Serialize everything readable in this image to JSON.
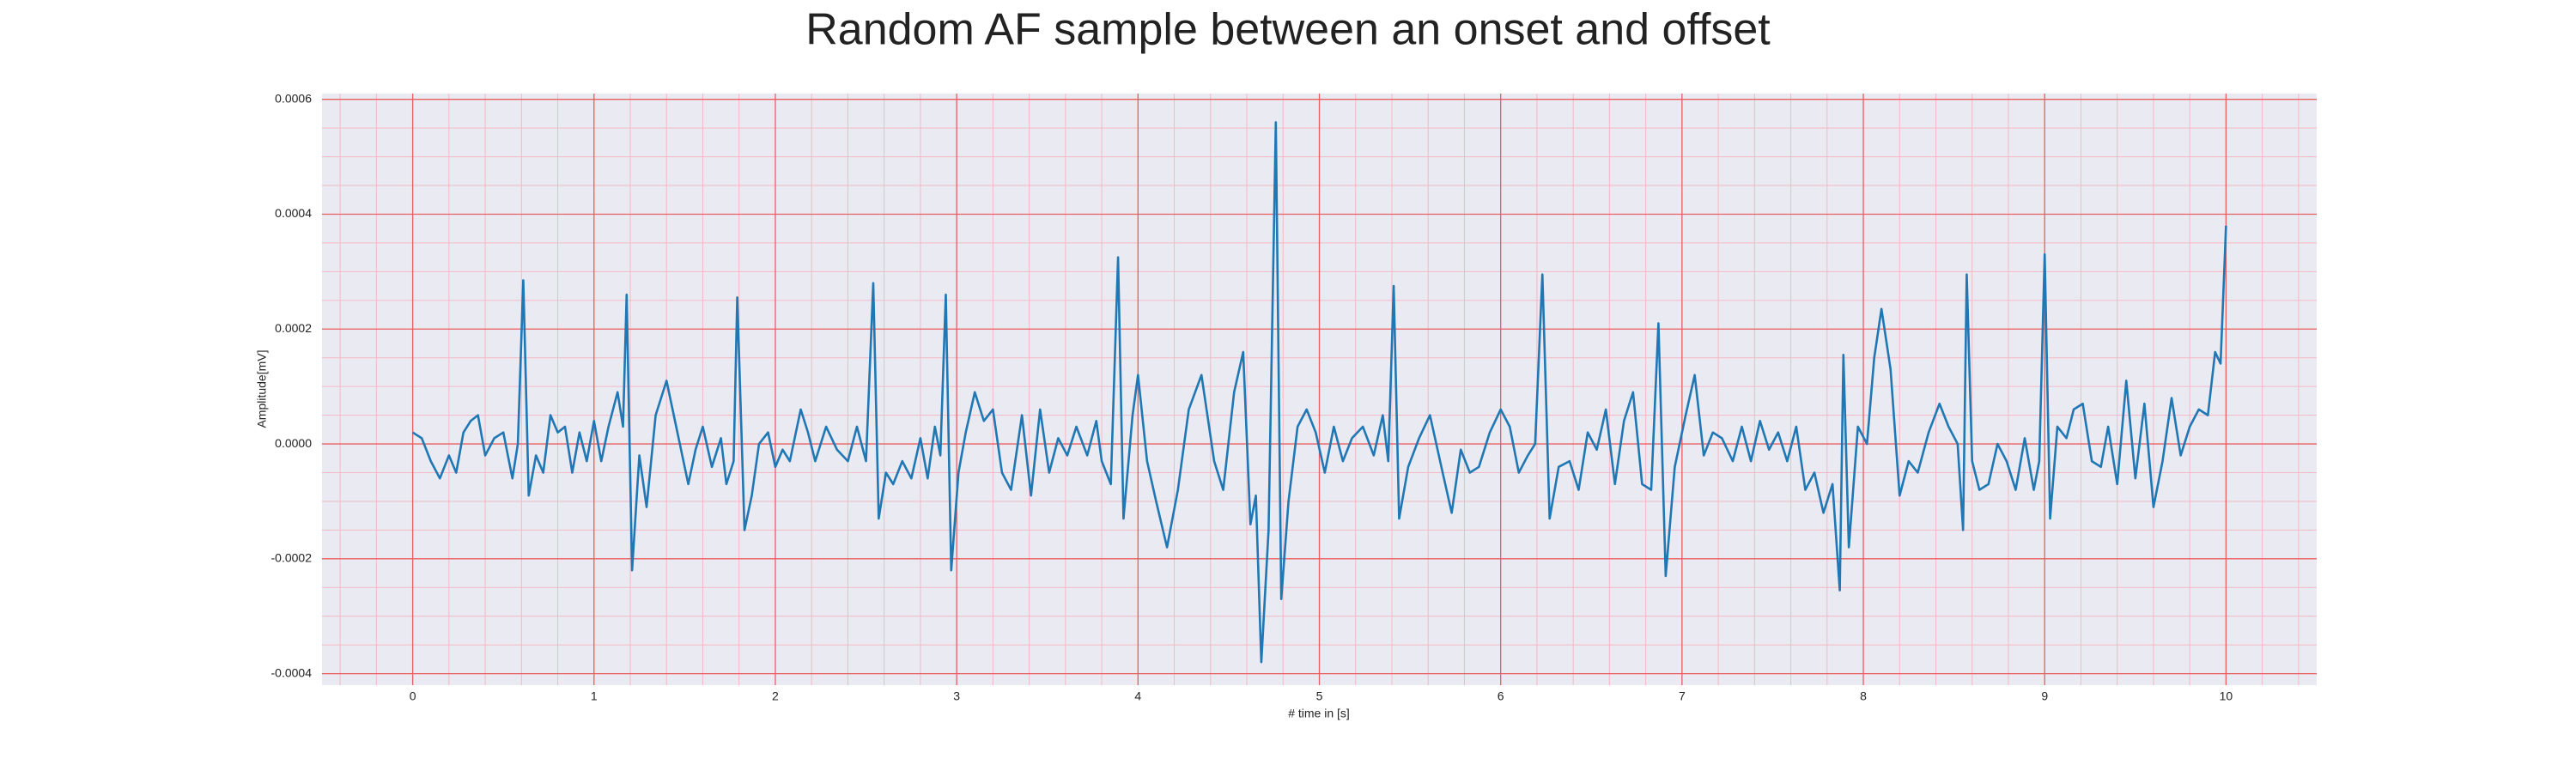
{
  "chart_data": {
    "type": "line",
    "title": "Random AF sample between an onset and offset",
    "xlabel": "# time in [s]",
    "ylabel": "Amplitude[mV]",
    "x": [
      0.0,
      0.05,
      0.1,
      0.15,
      0.2,
      0.24,
      0.28,
      0.32,
      0.36,
      0.4,
      0.45,
      0.5,
      0.55,
      0.58,
      0.61,
      0.64,
      0.68,
      0.72,
      0.76,
      0.8,
      0.84,
      0.88,
      0.92,
      0.96,
      1.0,
      1.04,
      1.08,
      1.13,
      1.16,
      1.18,
      1.21,
      1.25,
      1.29,
      1.34,
      1.4,
      1.46,
      1.52,
      1.56,
      1.6,
      1.65,
      1.7,
      1.73,
      1.77,
      1.79,
      1.83,
      1.87,
      1.91,
      1.96,
      2.0,
      2.04,
      2.08,
      2.14,
      2.18,
      2.22,
      2.28,
      2.34,
      2.4,
      2.45,
      2.5,
      2.54,
      2.57,
      2.61,
      2.65,
      2.7,
      2.75,
      2.8,
      2.84,
      2.88,
      2.91,
      2.94,
      2.97,
      3.01,
      3.05,
      3.1,
      3.15,
      3.2,
      3.25,
      3.3,
      3.36,
      3.41,
      3.46,
      3.51,
      3.56,
      3.61,
      3.66,
      3.72,
      3.77,
      3.8,
      3.85,
      3.89,
      3.92,
      3.97,
      4.0,
      4.05,
      4.1,
      4.16,
      4.22,
      4.28,
      4.35,
      4.42,
      4.47,
      4.53,
      4.58,
      4.62,
      4.65,
      4.68,
      4.72,
      4.76,
      4.79,
      4.83,
      4.88,
      4.93,
      4.98,
      5.03,
      5.08,
      5.13,
      5.18,
      5.24,
      5.3,
      5.35,
      5.38,
      5.41,
      5.44,
      5.49,
      5.55,
      5.61,
      5.68,
      5.73,
      5.78,
      5.83,
      5.88,
      5.94,
      6.0,
      6.05,
      6.1,
      6.15,
      6.19,
      6.23,
      6.27,
      6.32,
      6.38,
      6.43,
      6.48,
      6.53,
      6.58,
      6.63,
      6.68,
      6.73,
      6.78,
      6.83,
      6.87,
      6.91,
      6.96,
      7.02,
      7.07,
      7.12,
      7.17,
      7.22,
      7.28,
      7.33,
      7.38,
      7.43,
      7.48,
      7.53,
      7.58,
      7.63,
      7.68,
      7.73,
      7.78,
      7.83,
      7.87,
      7.89,
      7.92,
      7.97,
      8.02,
      8.06,
      8.1,
      8.15,
      8.2,
      8.25,
      8.3,
      8.36,
      8.42,
      8.47,
      8.52,
      8.55,
      8.57,
      8.6,
      8.64,
      8.69,
      8.74,
      8.79,
      8.84,
      8.89,
      8.94,
      8.97,
      9.0,
      9.03,
      9.07,
      9.12,
      9.16,
      9.21,
      9.26,
      9.31,
      9.35,
      9.4,
      9.45,
      9.5,
      9.55,
      9.6,
      9.65,
      9.7,
      9.75,
      9.8,
      9.85,
      9.9,
      9.94,
      9.97,
      10.0
    ],
    "series": [
      {
        "color": "#1f77b4",
        "values": [
          2e-05,
          1e-05,
          -3e-05,
          -6e-05,
          -2e-05,
          -5e-05,
          2e-05,
          4e-05,
          5e-05,
          -2e-05,
          1e-05,
          2e-05,
          -6e-05,
          0,
          0.000285,
          -9e-05,
          -2e-05,
          -5e-05,
          5e-05,
          2e-05,
          3e-05,
          -5e-05,
          2e-05,
          -3e-05,
          4e-05,
          -3e-05,
          3e-05,
          9e-05,
          3e-05,
          0.00026,
          -0.00022,
          -2e-05,
          -0.00011,
          5e-05,
          0.00011,
          2e-05,
          -7e-05,
          -1e-05,
          3e-05,
          -4e-05,
          1e-05,
          -7e-05,
          -3e-05,
          0.000255,
          -0.00015,
          -9e-05,
          0,
          2e-05,
          -4e-05,
          -1e-05,
          -3e-05,
          6e-05,
          2e-05,
          -3e-05,
          3e-05,
          -1e-05,
          -3e-05,
          3e-05,
          -3e-05,
          0.00028,
          -0.00013,
          -5e-05,
          -7e-05,
          -3e-05,
          -6e-05,
          1e-05,
          -6e-05,
          3e-05,
          -2e-05,
          0.00026,
          -0.00022,
          -5e-05,
          2e-05,
          9e-05,
          4e-05,
          6e-05,
          -5e-05,
          -8e-05,
          5e-05,
          -9e-05,
          6e-05,
          -5e-05,
          1e-05,
          -2e-05,
          3e-05,
          -2e-05,
          4e-05,
          -3e-05,
          -7e-05,
          0.000325,
          -0.00013,
          5e-05,
          0.00012,
          -3e-05,
          -0.0001,
          -0.00018,
          -8e-05,
          6e-05,
          0.00012,
          -3e-05,
          -8e-05,
          9e-05,
          0.00016,
          -0.00014,
          -9e-05,
          -0.00038,
          -0.00015,
          0.00056,
          -0.00027,
          -0.0001,
          3e-05,
          6e-05,
          2e-05,
          -5e-05,
          3e-05,
          -3e-05,
          1e-05,
          3e-05,
          -2e-05,
          5e-05,
          -3e-05,
          0.000275,
          -0.00013,
          -4e-05,
          1e-05,
          5e-05,
          -5e-05,
          -0.00012,
          -1e-05,
          -5e-05,
          -4e-05,
          2e-05,
          6e-05,
          3e-05,
          -5e-05,
          -2e-05,
          0,
          0.000295,
          -0.00013,
          -4e-05,
          -3e-05,
          -8e-05,
          2e-05,
          -1e-05,
          6e-05,
          -7e-05,
          4e-05,
          9e-05,
          -7e-05,
          -8e-05,
          0.00021,
          -0.00023,
          -4e-05,
          5e-05,
          0.00012,
          -2e-05,
          2e-05,
          1e-05,
          -3e-05,
          3e-05,
          -3e-05,
          4e-05,
          -1e-05,
          2e-05,
          -3e-05,
          3e-05,
          -8e-05,
          -5e-05,
          -0.00012,
          -7e-05,
          -0.000255,
          0.000155,
          -0.00018,
          3e-05,
          0,
          0.00015,
          0.000235,
          0.00013,
          -9e-05,
          -3e-05,
          -5e-05,
          2e-05,
          7e-05,
          3e-05,
          0,
          -0.00015,
          0.000295,
          -3e-05,
          -8e-05,
          -7e-05,
          0,
          -3e-05,
          -8e-05,
          1e-05,
          -8e-05,
          -3e-05,
          0.00033,
          -0.00013,
          3e-05,
          1e-05,
          6e-05,
          7e-05,
          -3e-05,
          -4e-05,
          3e-05,
          -7e-05,
          0.00011,
          -6e-05,
          7e-05,
          -0.00011,
          -3e-05,
          8e-05,
          -2e-05,
          3e-05,
          6e-05,
          5e-05,
          0.00016,
          0.00014,
          0.00038
        ]
      }
    ],
    "xlim": [
      -0.5,
      10.5
    ],
    "ylim": [
      -0.00042,
      0.00061
    ],
    "xticks": [
      0,
      1,
      2,
      3,
      4,
      5,
      6,
      7,
      8,
      9,
      10
    ],
    "yticks": [
      {
        "value": -0.0004,
        "label": "-0.0004"
      },
      {
        "value": -0.0002,
        "label": "-0.0002"
      },
      {
        "value": 0,
        "label": "0.0000"
      },
      0.0002,
      0.0004,
      0.0006
    ],
    "grid": true,
    "x_minor_divisions": 5,
    "y_minor_divisions": 4
  }
}
